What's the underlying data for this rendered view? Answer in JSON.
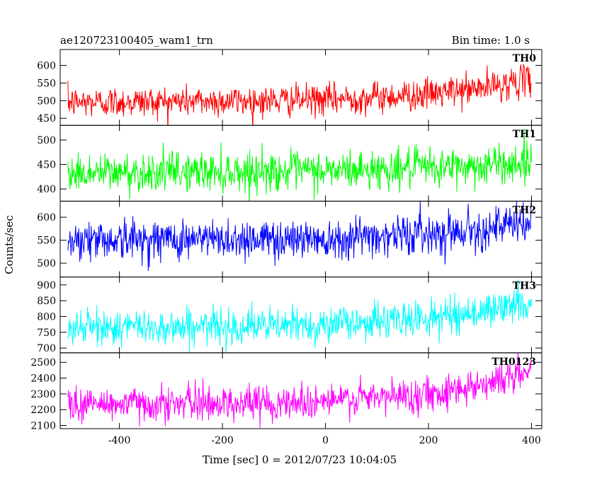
{
  "header": {
    "title": "ae120723100405_wam1_trn",
    "bin_time": "Bin time: 1.0 s"
  },
  "chart_data": [
    {
      "type": "line",
      "panel": "TH0",
      "label": "TH0",
      "color": "#ff0000",
      "ylim": [
        430,
        645
      ],
      "yticks": [
        450,
        500,
        550,
        600
      ],
      "trend": [
        [
          -500,
          495
        ],
        [
          -300,
          498
        ],
        [
          -100,
          500
        ],
        [
          0,
          503
        ],
        [
          100,
          510
        ],
        [
          200,
          518
        ],
        [
          300,
          535
        ],
        [
          400,
          560
        ]
      ],
      "noise_sd": 22
    },
    {
      "type": "line",
      "panel": "TH1",
      "label": "TH1",
      "color": "#00ff00",
      "ylim": [
        375,
        530
      ],
      "yticks": [
        400,
        450,
        500
      ],
      "trend": [
        [
          -500,
          432
        ],
        [
          -300,
          435
        ],
        [
          -100,
          436
        ],
        [
          0,
          437
        ],
        [
          100,
          440
        ],
        [
          200,
          443
        ],
        [
          300,
          447
        ],
        [
          400,
          455
        ]
      ],
      "noise_sd": 20
    },
    {
      "type": "line",
      "panel": "TH2",
      "label": "TH2",
      "color": "#0000ff",
      "ylim": [
        470,
        635
      ],
      "yticks": [
        500,
        550,
        600
      ],
      "trend": [
        [
          -500,
          552
        ],
        [
          -300,
          552
        ],
        [
          -100,
          553
        ],
        [
          0,
          555
        ],
        [
          100,
          560
        ],
        [
          200,
          565
        ],
        [
          300,
          575
        ],
        [
          400,
          585
        ]
      ],
      "noise_sd": 22
    },
    {
      "type": "line",
      "panel": "TH3",
      "label": "TH3",
      "color": "#00ffff",
      "ylim": [
        685,
        925
      ],
      "yticks": [
        700,
        750,
        800,
        850,
        900
      ],
      "trend": [
        [
          -500,
          765
        ],
        [
          -300,
          767
        ],
        [
          -100,
          770
        ],
        [
          0,
          775
        ],
        [
          100,
          785
        ],
        [
          200,
          795
        ],
        [
          300,
          815
        ],
        [
          400,
          845
        ]
      ],
      "noise_sd": 28
    },
    {
      "type": "line",
      "panel": "TH0123",
      "label": "TH0123",
      "color": "#ff00ff",
      "ylim": [
        2080,
        2560
      ],
      "yticks": [
        2100,
        2200,
        2300,
        2400,
        2500
      ],
      "trend": [
        [
          -500,
          2235
        ],
        [
          -300,
          2240
        ],
        [
          -100,
          2245
        ],
        [
          0,
          2255
        ],
        [
          100,
          2275
        ],
        [
          200,
          2300
        ],
        [
          300,
          2360
        ],
        [
          400,
          2440
        ]
      ],
      "noise_sd": 55
    }
  ],
  "axes": {
    "xlim": [
      -515,
      420
    ],
    "xrange": [
      -500,
      400
    ],
    "xticks": [
      -400,
      -200,
      0,
      200,
      400
    ],
    "xlabel": "Time [sec] 0 = 2012/07/23 10:04:05",
    "ylabel": "Counts/sec"
  }
}
